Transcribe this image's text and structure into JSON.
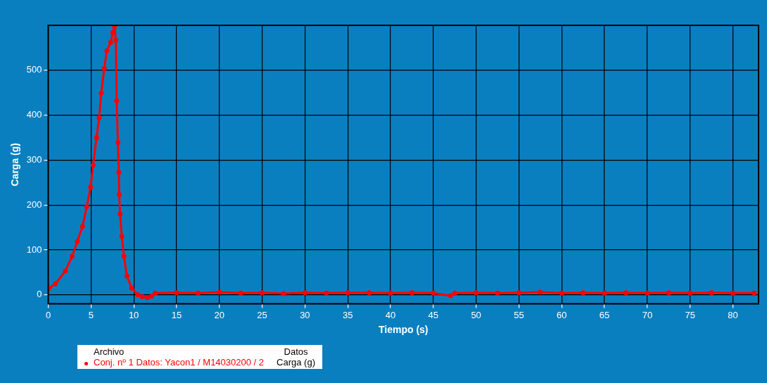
{
  "chart_data": {
    "type": "line",
    "xlabel": "Tiempo (s)",
    "ylabel": "Carga (g)",
    "legend_title": "Archivo",
    "annotations": [
      "Datos",
      "Carga (g)"
    ],
    "series": [
      {
        "name": "Conj. nº 1 Datos: Yacon1 / M14030200 / 2",
        "color": "#ff0000",
        "x": [
          0.1,
          0.85,
          2.0,
          2.8,
          3.4,
          4.0,
          4.5,
          4.95,
          5.25,
          5.65,
          5.95,
          6.2,
          6.55,
          6.85,
          7.3,
          7.55,
          7.75,
          7.9,
          8.0,
          8.15,
          8.25,
          8.3,
          8.4,
          8.6,
          8.85,
          9.2,
          9.75,
          10.5,
          11.0,
          11.6,
          12.1,
          12.5,
          15,
          17.5,
          20,
          22.5,
          25,
          27.5,
          30,
          32.5,
          35,
          37.5,
          40,
          42.5,
          45,
          47,
          47.5,
          50,
          52.5,
          55,
          57.5,
          60,
          62.5,
          65,
          67.5,
          70,
          72.5,
          75,
          77.5,
          80,
          82.5
        ],
        "values": [
          15,
          25,
          53,
          86,
          119,
          152,
          196,
          240,
          289,
          350,
          394,
          449,
          504,
          543,
          562,
          584,
          597,
          567,
          432,
          339,
          273,
          223,
          180,
          130,
          86,
          42,
          15,
          0,
          -4,
          -6,
          -3,
          4,
          5,
          4,
          6,
          4,
          5,
          3,
          5,
          4,
          5,
          5,
          4,
          5,
          4,
          -2,
          4,
          5,
          4,
          5,
          6,
          4,
          5,
          4,
          5,
          4,
          5,
          4,
          5,
          4,
          4
        ]
      }
    ],
    "xlim": [
      0,
      83
    ],
    "ylim": [
      -20,
      600
    ],
    "xticks": [
      0,
      5,
      10,
      15,
      20,
      25,
      30,
      35,
      40,
      45,
      50,
      55,
      60,
      65,
      70,
      75,
      80
    ],
    "yticks": [
      0,
      100,
      200,
      300,
      400,
      500
    ],
    "grid": true,
    "legend": "bottom",
    "marker": "circle",
    "line_style": "solid"
  }
}
